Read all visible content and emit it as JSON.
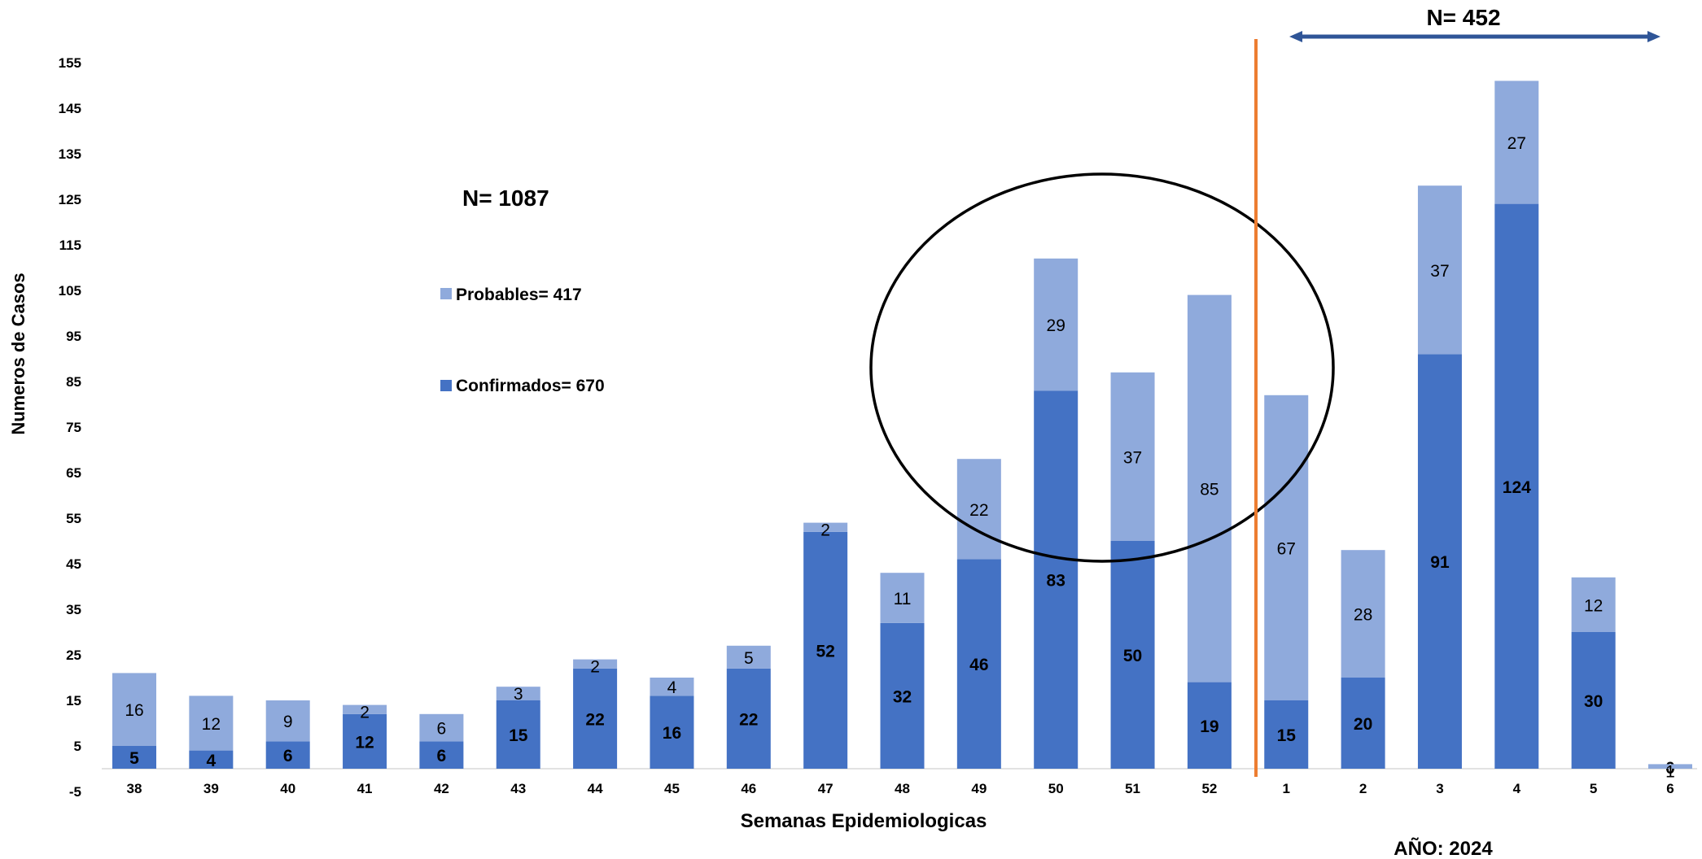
{
  "chart_data": {
    "type": "bar",
    "stacked": true,
    "xlabel": "Semanas Epidemiologicas",
    "ylabel": "Numeros de Casos",
    "ylim": [
      -5,
      155
    ],
    "yticks": [
      -5,
      5,
      15,
      25,
      35,
      45,
      55,
      65,
      75,
      85,
      95,
      105,
      115,
      125,
      135,
      145,
      155
    ],
    "categories": [
      "38",
      "39",
      "40",
      "41",
      "42",
      "43",
      "44",
      "45",
      "46",
      "47",
      "48",
      "49",
      "50",
      "51",
      "52",
      "1",
      "2",
      "3",
      "4",
      "5",
      "6"
    ],
    "series": [
      {
        "name": "Confirmados= 670",
        "color": "#4472c4",
        "values": [
          5,
          4,
          6,
          12,
          6,
          15,
          22,
          16,
          22,
          52,
          32,
          46,
          83,
          50,
          19,
          15,
          20,
          91,
          124,
          30,
          0
        ]
      },
      {
        "name": "Probables= 417",
        "color": "#8faadc",
        "values": [
          16,
          12,
          9,
          2,
          6,
          3,
          2,
          4,
          5,
          2,
          11,
          22,
          29,
          37,
          85,
          67,
          28,
          37,
          27,
          12,
          1
        ]
      }
    ],
    "annotations": {
      "total_label": "N= 1087",
      "year_total_label": "N= 452",
      "year_label": "AÑO: 2024"
    },
    "colors": {
      "divider": "#ed7d31",
      "arrow": "#2f5597",
      "circle": "#000000"
    }
  }
}
